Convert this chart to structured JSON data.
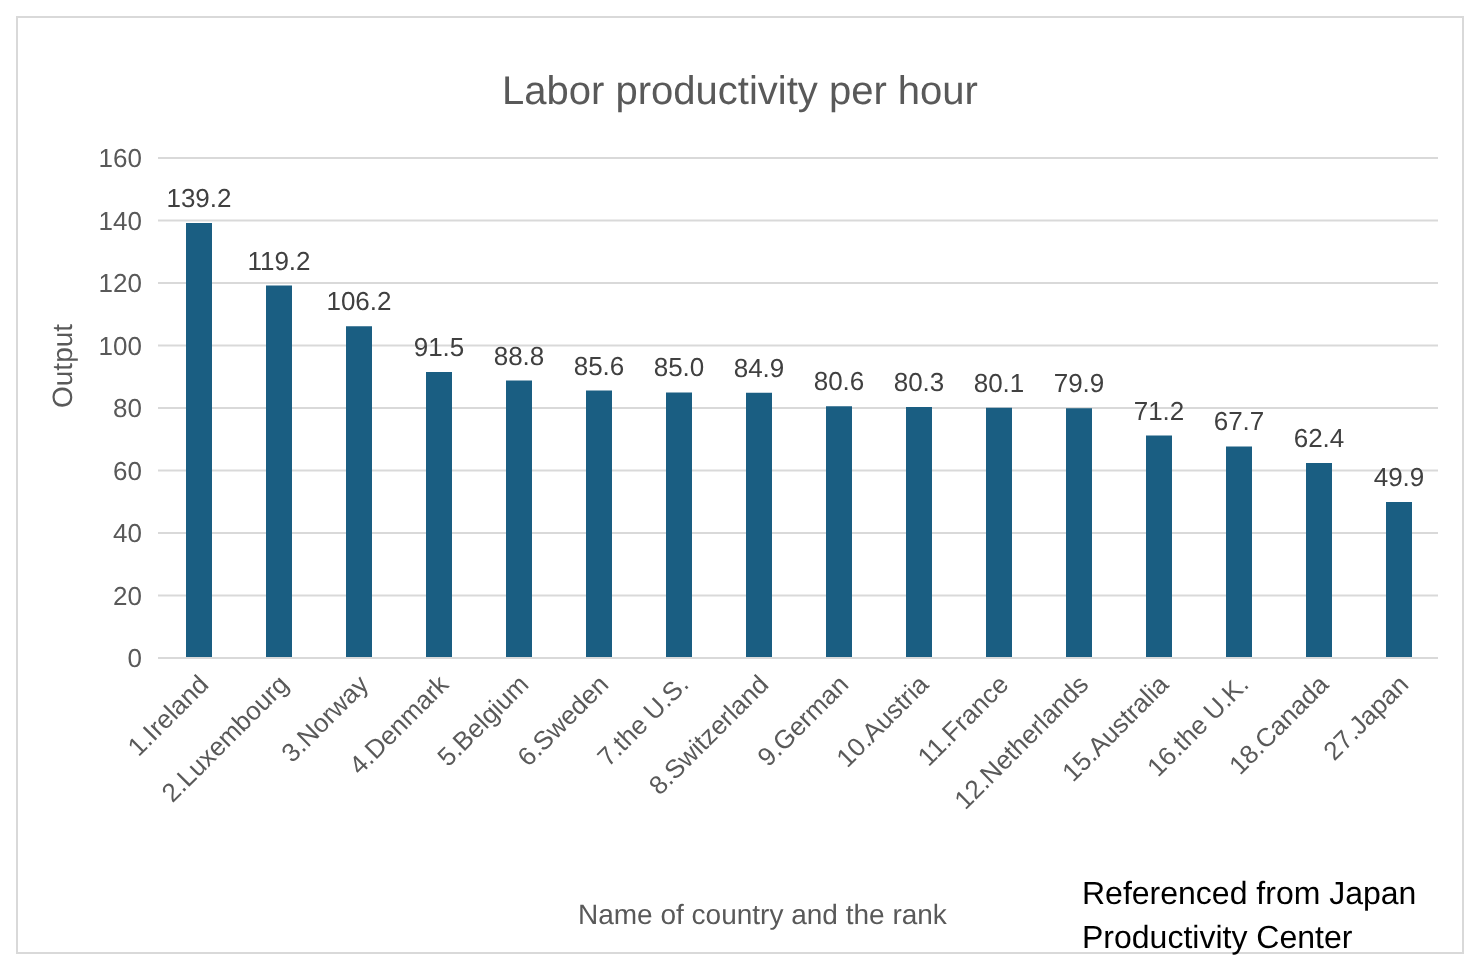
{
  "chart_data": {
    "type": "bar",
    "title": "Labor productivity per hour",
    "xlabel": "Name of country and the rank",
    "ylabel": "Output",
    "categories": [
      "1.Ireland",
      "2.Luxembourg",
      "3.Norway",
      "4.Denmark",
      "5.Belgium",
      "6.Sweden",
      "7.the U.S.",
      "8.Switzerland",
      "9.German",
      "10.Austria",
      "11.France",
      "12.Netherlands",
      "15.Australia",
      "16.the U.K.",
      "18.Canada",
      "27.Japan"
    ],
    "values": [
      139.2,
      119.2,
      106.2,
      91.5,
      88.8,
      85.6,
      85.0,
      84.9,
      80.6,
      80.3,
      80.1,
      79.9,
      71.2,
      67.7,
      62.4,
      49.9
    ],
    "value_labels": [
      "139.2",
      "119.2",
      "106.2",
      "91.5",
      "88.8",
      "85.6",
      "85.0",
      "84.9",
      "80.6",
      "80.3",
      "80.1",
      "79.9",
      "71.2",
      "67.7",
      "62.4",
      "49.9"
    ],
    "color": "#1a5e82",
    "ylim": [
      0,
      160
    ],
    "yticks": [
      0,
      20,
      40,
      60,
      80,
      100,
      120,
      140,
      160
    ],
    "grid": "y",
    "annotations": [
      "Referenced from Japan Productivity Center"
    ]
  }
}
